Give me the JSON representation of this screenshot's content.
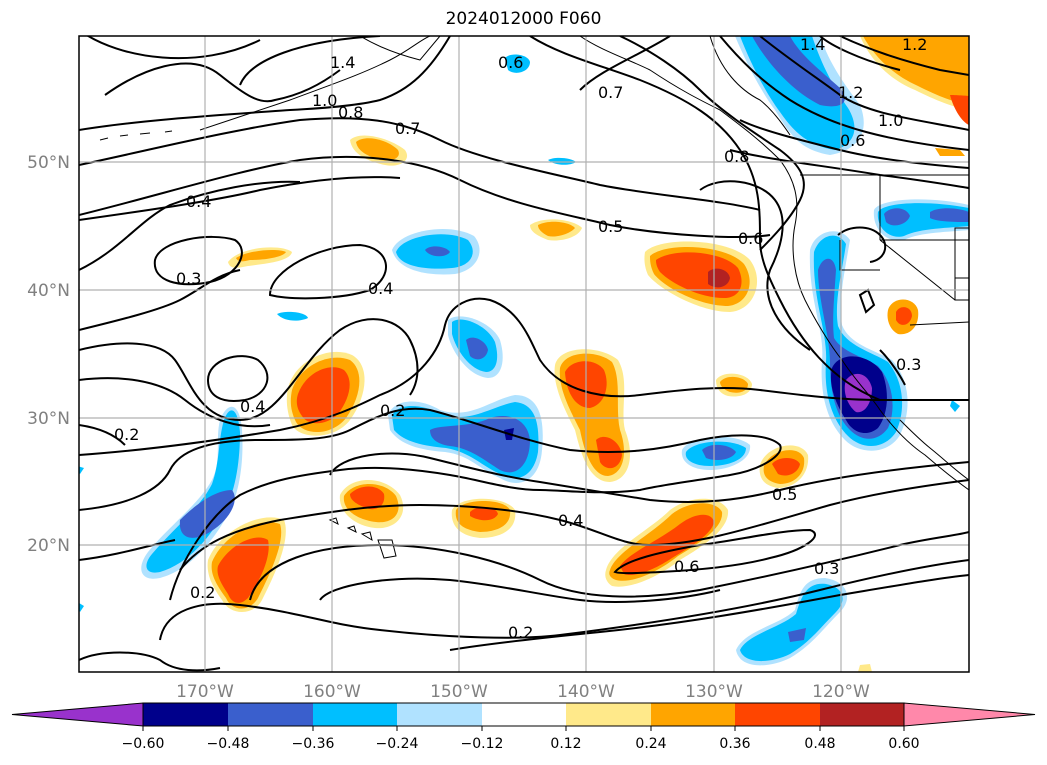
{
  "title": "2024012000 F060",
  "colors": {
    "grid": "#b0b0b0",
    "axis_label": "#808080",
    "contour": "#000000"
  },
  "latitude_labels": [
    "50°N",
    "40°N",
    "30°N",
    "20°N"
  ],
  "longitude_labels": [
    "170°W",
    "160°W",
    "150°W",
    "140°W",
    "130°W",
    "120°W"
  ],
  "contour_labels": [
    "1.4",
    "1.0",
    "0.8",
    "0.7",
    "0.6",
    "0.7",
    "1.4",
    "1.2",
    "1.2",
    "1.0",
    "0.6",
    "0.8",
    "0.4",
    "0.5",
    "0.6",
    "0.3",
    "0.4",
    "0.4",
    "0.2",
    "0.2",
    "0.4",
    "0.5",
    "0.6",
    "0.3",
    "0.2",
    "0.2",
    "0.3"
  ],
  "colorbar": {
    "ticks": [
      "−0.60",
      "−0.48",
      "−0.36",
      "−0.24",
      "−0.12",
      "0.12",
      "0.24",
      "0.36",
      "0.48",
      "0.60"
    ],
    "colors": [
      "#9932cc",
      "#00008b",
      "#3a5fcd",
      "#00bfff",
      "#b0e2ff",
      "#ffffff",
      "#ffe98a",
      "#ffa500",
      "#ff4500",
      "#b22222",
      "#ff88aa"
    ]
  }
}
